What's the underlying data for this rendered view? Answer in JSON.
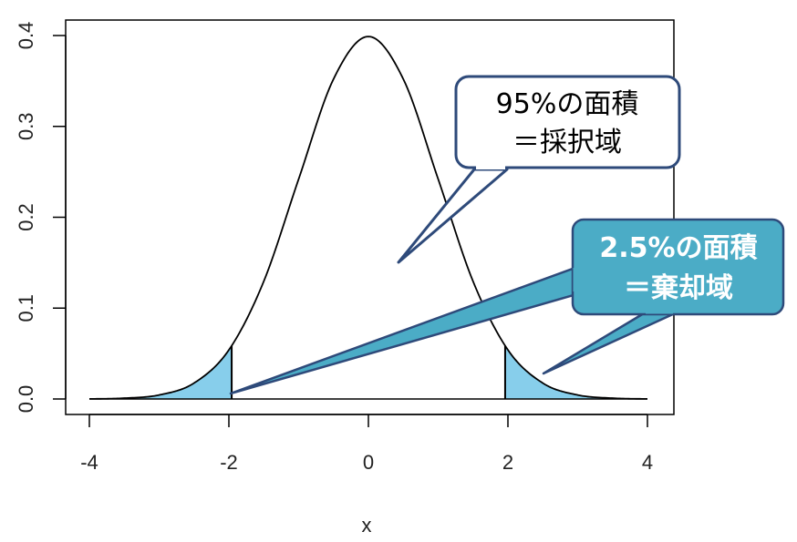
{
  "chart_data": {
    "type": "area",
    "title": "",
    "xlabel": "x",
    "ylabel": "",
    "xlim": [
      -4,
      4
    ],
    "ylim": [
      0,
      0.4
    ],
    "x_ticks": [
      "-4",
      "-2",
      "0",
      "2",
      "4"
    ],
    "y_ticks": [
      "0.0",
      "0.1",
      "0.2",
      "0.3",
      "0.4"
    ],
    "grid": false,
    "series": [
      {
        "x": [
          -4,
          -3.5,
          -3,
          -2.5,
          -2,
          -1.5,
          -1,
          -0.5,
          0,
          0.5,
          1,
          1.5,
          2,
          2.5,
          3,
          3.5,
          4
        ],
        "y": [
          0.0001,
          0.0009,
          0.0044,
          0.0175,
          0.054,
          0.1295,
          0.242,
          0.3521,
          0.3989,
          0.3521,
          0.242,
          0.1295,
          0.054,
          0.0175,
          0.0044,
          0.0009,
          0.0001
        ]
      }
    ],
    "shaded_regions": [
      {
        "from": -4,
        "to": -1.96,
        "color": "#87ceeb"
      },
      {
        "from": 1.96,
        "to": 4,
        "color": "#87ceeb"
      }
    ],
    "annotations": [
      {
        "line1": "95%の面積",
        "line2": "＝採択域",
        "style": "white"
      },
      {
        "line1": "2.5%の面積",
        "line2": "＝棄却域",
        "style": "teal"
      }
    ]
  },
  "colors": {
    "shade": "#87ceeb",
    "callout_teal": "#4bacc6",
    "callout_border": "#2e4a7a"
  }
}
